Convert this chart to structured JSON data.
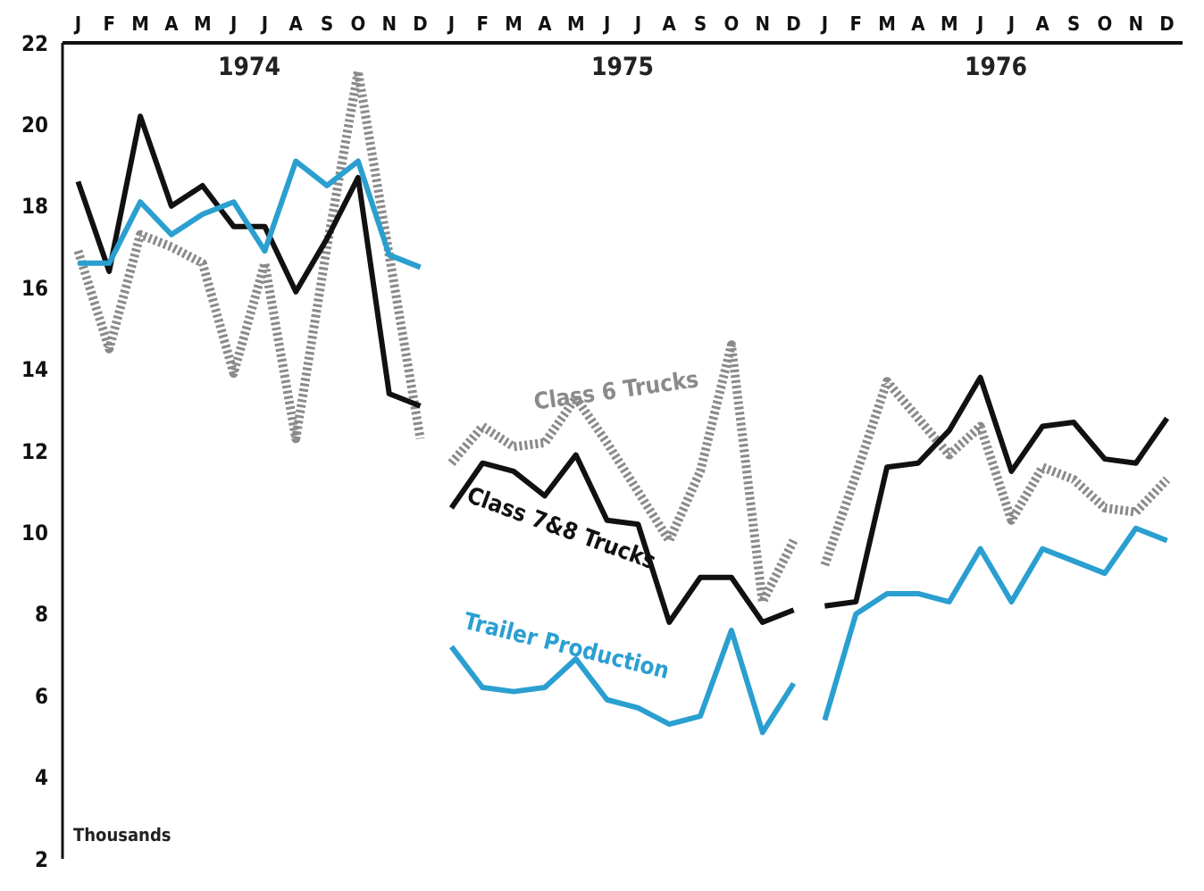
{
  "chart_data": [
    {
      "type": "line",
      "title": "1974",
      "ylabel": "Thousands",
      "categories": [
        "J",
        "F",
        "M",
        "A",
        "M",
        "J",
        "J",
        "A",
        "S",
        "O",
        "N",
        "D"
      ],
      "series": [
        {
          "color": "#8a8a8a",
          "line_style": "dotted",
          "values": [
            16.9,
            14.5,
            17.3,
            17.0,
            16.6,
            13.9,
            16.6,
            12.3,
            17.0,
            21.3,
            16.8,
            12.3
          ]
        },
        {
          "color": "#111111",
          "line_style": "solid",
          "values": [
            18.6,
            16.4,
            20.2,
            18.0,
            18.5,
            17.5,
            17.5,
            15.9,
            17.2,
            18.7,
            13.4,
            13.1
          ]
        },
        {
          "color": "#2a9fd0",
          "line_style": "solid",
          "values": [
            16.6,
            16.6,
            18.1,
            17.3,
            17.8,
            18.1,
            16.9,
            19.1,
            18.5,
            19.1,
            16.8,
            16.5
          ]
        }
      ],
      "ylim": [
        2,
        22
      ],
      "yticks": [
        2,
        4,
        6,
        8,
        10,
        12,
        14,
        16,
        18,
        20,
        22
      ],
      "marker": "none"
    },
    {
      "type": "line",
      "title": "1975",
      "categories": [
        "J",
        "F",
        "M",
        "A",
        "M",
        "J",
        "J",
        "A",
        "S",
        "O",
        "N",
        "D"
      ],
      "series": [
        {
          "name": "Class 6 Trucks",
          "color": "#8a8a8a",
          "line_style": "dotted",
          "values": [
            11.7,
            12.6,
            12.1,
            12.2,
            13.3,
            12.2,
            11.0,
            9.8,
            11.5,
            14.6,
            8.3,
            9.8
          ]
        },
        {
          "name": "Class 7&8 Trucks",
          "color": "#111111",
          "line_style": "solid",
          "values": [
            10.6,
            11.7,
            11.5,
            10.9,
            11.9,
            10.3,
            10.2,
            7.8,
            8.9,
            8.9,
            7.8,
            8.1
          ]
        },
        {
          "name": "Trailer Production",
          "color": "#2a9fd0",
          "line_style": "solid",
          "values": [
            7.2,
            6.2,
            6.1,
            6.2,
            6.9,
            5.9,
            5.7,
            5.3,
            5.5,
            7.6,
            5.1,
            6.3
          ]
        }
      ],
      "ylim": [
        2,
        22
      ],
      "yticks": [
        2,
        4,
        6,
        8,
        10,
        12,
        14,
        16,
        18,
        20,
        22
      ],
      "tick_labels": "x",
      "marker": "none"
    },
    {
      "type": "line",
      "title": "1976",
      "categories": [
        "J",
        "F",
        "M",
        "A",
        "M",
        "J",
        "J",
        "A",
        "S",
        "O",
        "N",
        "D"
      ],
      "series": [
        {
          "color": "#8a8a8a",
          "line_style": "dotted",
          "values": [
            9.2,
            11.4,
            13.7,
            12.8,
            11.9,
            12.6,
            10.3,
            11.6,
            11.3,
            10.6,
            10.5,
            11.3
          ]
        },
        {
          "color": "#111111",
          "line_style": "solid",
          "values": [
            8.2,
            8.3,
            11.6,
            11.7,
            12.5,
            13.8,
            11.5,
            12.6,
            12.7,
            11.8,
            11.7,
            12.8
          ]
        },
        {
          "color": "#2a9fd0",
          "line_style": "solid",
          "values": [
            5.4,
            8.0,
            8.5,
            8.5,
            8.3,
            9.6,
            8.3,
            9.6,
            9.3,
            9.0,
            10.1,
            9.8
          ]
        }
      ],
      "ylim": [
        2,
        22
      ],
      "yticks": [
        2,
        4,
        6,
        8,
        10,
        12,
        14,
        16,
        18,
        20,
        22
      ],
      "tick_labels": "x",
      "marker": "none"
    }
  ]
}
